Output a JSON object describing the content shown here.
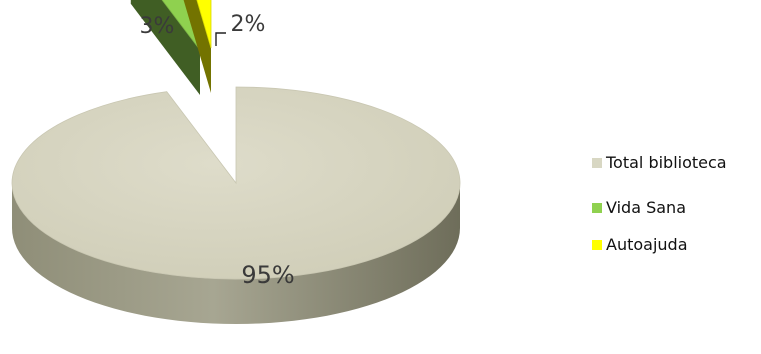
{
  "chart_data": {
    "type": "pie",
    "title": "",
    "style": "3d-exploded",
    "legend_position": "right",
    "categories": [
      "Total biblioteca",
      "Vida Sana",
      "Autoajuda"
    ],
    "values": [
      95,
      3,
      2
    ],
    "data_labels": [
      "95%",
      "3%",
      "2%"
    ],
    "colors": [
      "#d8d7c3",
      "#8fd14f",
      "#ffff00"
    ]
  }
}
